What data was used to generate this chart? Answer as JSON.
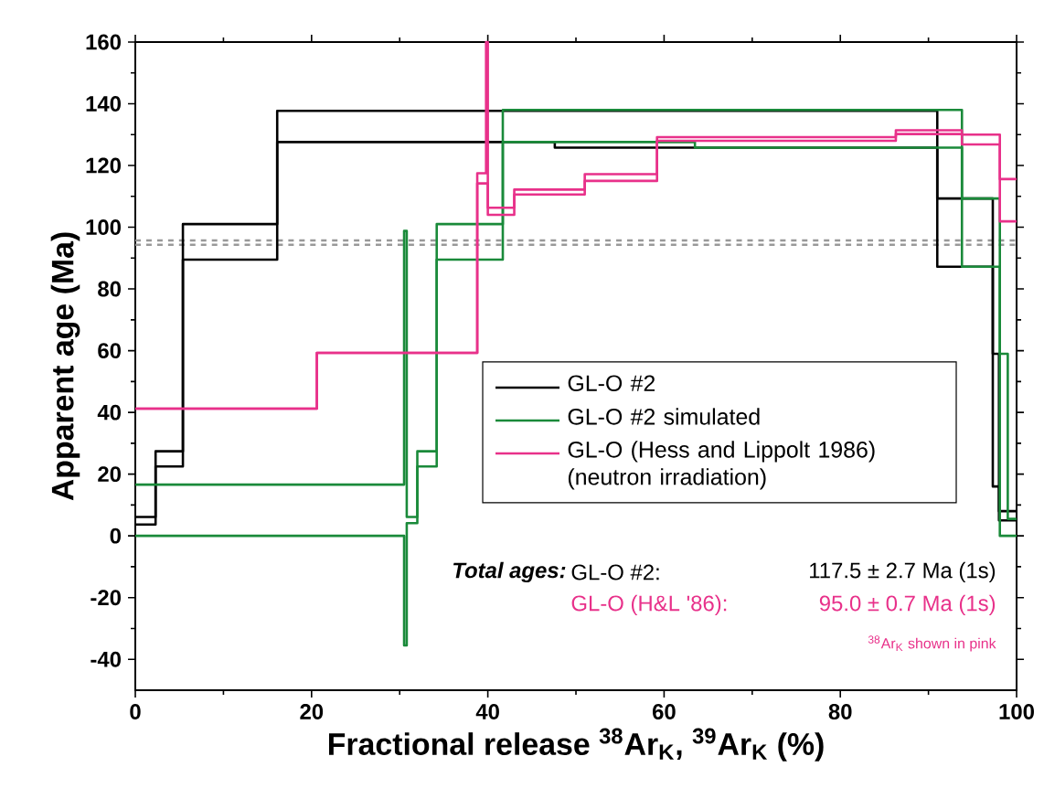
{
  "chart_data": {
    "type": "step",
    "xlabel": "Fractional release $^{38}$Ar$_{K}$, $^{39}$Ar$_{K}$ (%)",
    "ylabel": "Apparent age (Ma)",
    "xlim": [
      0,
      100
    ],
    "ylim": [
      -50,
      160
    ],
    "xticks": [
      0,
      20,
      40,
      60,
      80,
      100
    ],
    "yticks": [
      -40,
      -20,
      0,
      20,
      40,
      60,
      80,
      100,
      120,
      140,
      160
    ],
    "grid": false,
    "legend": "right",
    "line_style": "solid",
    "series": [
      {
        "name": "GL-O #2",
        "color": "#000000",
        "x": [
          0,
          2.3,
          5.4,
          16.1,
          47.6,
          91,
          97.3,
          98.0,
          100
        ],
        "values": [
          6.1,
          27.4,
          101,
          137.7,
          137.7,
          109.3,
          59,
          8,
          8
        ]
      },
      {
        "color": "#000000",
        "x": [
          0,
          2.3,
          5.4,
          16.1,
          47.6,
          91,
          97.3,
          98.0,
          100
        ],
        "values": [
          3.7,
          22.5,
          89.5,
          127.6,
          125.8,
          87.2,
          16,
          5,
          5
        ]
      },
      {
        "name": "GL-O #2 simulated",
        "color": "#1a8a3a",
        "x": [
          0,
          30.5,
          30.8,
          32,
          34.2,
          41.7,
          63.5,
          93.8,
          98.1,
          99,
          100
        ],
        "values": [
          16.6,
          98.8,
          6.1,
          27.4,
          101,
          138,
          138,
          109.3,
          59,
          5.5,
          5.5
        ]
      },
      {
        "color": "#1a8a3a",
        "x": [
          0,
          30.5,
          30.8,
          32,
          34.2,
          41.7,
          63.5,
          93.8,
          98.1,
          99,
          100
        ],
        "values": [
          0,
          -35.5,
          4.1,
          22.5,
          89.5,
          127.6,
          125.8,
          87.2,
          0,
          0,
          0
        ]
      },
      {
        "name": "GL-O (Hess and Lippolt 1986) (neutron irradiation)",
        "color": "#e8318a",
        "x": [
          0,
          20.6,
          38.8,
          39.8,
          40.0,
          43,
          51,
          59.2,
          86.3,
          93.8,
          98.1,
          100
        ],
        "values": [
          41.2,
          59.3,
          117.5,
          160,
          106.3,
          112.2,
          117.2,
          129.2,
          131.4,
          130,
          115.6,
          115.6
        ]
      },
      {
        "color": "#e8318a",
        "x": [
          0,
          20.6,
          38.8,
          39.8,
          40.0,
          43,
          51,
          59.2,
          86.3,
          93.8,
          98.1,
          100
        ],
        "values": [
          41.2,
          59.3,
          114.2,
          114.2,
          104,
          110.6,
          115,
          128,
          130.2,
          126.8,
          101.9,
          101.9
        ]
      }
    ],
    "ref_lines": [
      {
        "axis": "y",
        "value": 95.7,
        "color": "#999999",
        "line_style": "dashed"
      },
      {
        "axis": "y",
        "value": 94.3,
        "color": "#999999",
        "line_style": "dashed"
      }
    ],
    "annotations": [
      "Total ages:",
      "GL-O #2:",
      "117.5 ± 2.7 Ma (1s)",
      "GL-O (H&L '86):",
      "95.0 ± 0.7 Ma (1s)",
      "$^{38}$Ar$_{K}$ shown in pink"
    ]
  }
}
